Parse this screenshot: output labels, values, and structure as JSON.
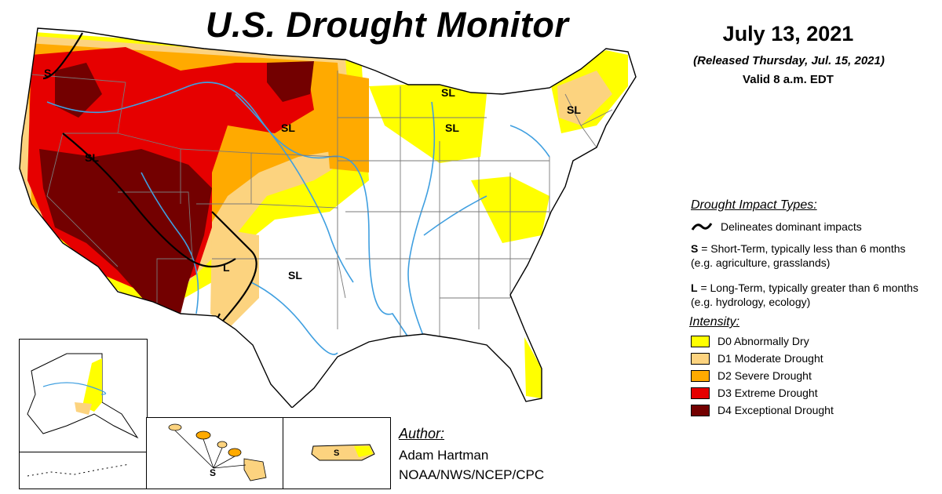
{
  "header": {
    "title": "U.S. Drought Monitor",
    "date": "July 13, 2021",
    "released": "(Released Thursday, Jul. 15, 2021)",
    "valid": "Valid 8 a.m. EDT"
  },
  "impact_types": {
    "heading": "Drought Impact Types:",
    "line_label": "Delineates dominant impacts",
    "short_key": "S",
    "short_text": "= Short-Term, typically less than 6 months (e.g. agriculture, grasslands)",
    "long_key": "L",
    "long_text": "= Long-Term, typically greater than 6 months (e.g. hydrology, ecology)"
  },
  "intensity": {
    "heading": "Intensity:",
    "levels": [
      {
        "label": "D0 Abnormally Dry",
        "color": "#ffff00"
      },
      {
        "label": "D1 Moderate Drought",
        "color": "#fcd37f"
      },
      {
        "label": "D2 Severe Drought",
        "color": "#ffaa00"
      },
      {
        "label": "D3 Extreme Drought",
        "color": "#e60000"
      },
      {
        "label": "D4 Exceptional Drought",
        "color": "#730000"
      }
    ]
  },
  "map_labels": {
    "sl": "SL",
    "s": "S",
    "l": "L"
  },
  "author": {
    "heading": "Author:",
    "name": "Adam Hartman",
    "org": "NOAA/NWS/NCEP/CPC"
  },
  "colors": {
    "river": "#3f9fe0",
    "border": "#000000",
    "state_line": "#7a7a7a"
  }
}
